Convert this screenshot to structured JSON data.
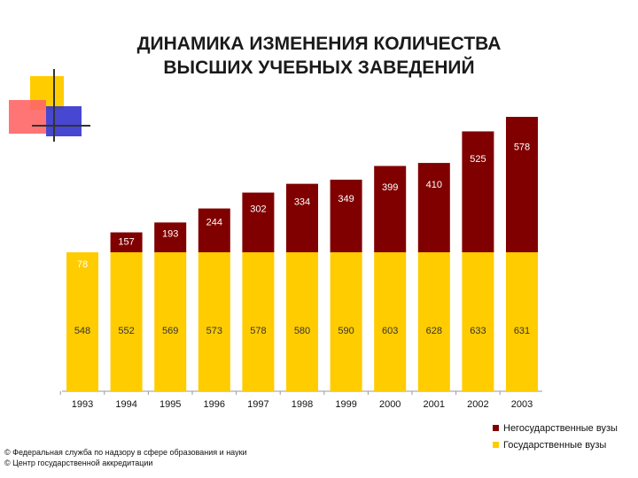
{
  "title_line1": "ДИНАМИКА ИЗМЕНЕНИЯ КОЛИЧЕСТВА",
  "title_line2": "ВЫСШИХ УЧЕБНЫХ ЗАВЕДЕНИЙ",
  "colors": {
    "state": "#ffcc00",
    "nonstate": "#800000",
    "deco_yellow": "#ffcc00",
    "deco_red": "#ff4d4d",
    "deco_blue": "#3333cc",
    "deco_line": "#333333"
  },
  "chart_data": {
    "type": "bar",
    "stacked": true,
    "categories": [
      "1993",
      "1994",
      "1995",
      "1996",
      "1997",
      "1998",
      "1999",
      "2000",
      "2001",
      "2002",
      "2003"
    ],
    "series": [
      {
        "name": "Государственные вузы",
        "values": [
          548,
          552,
          569,
          573,
          578,
          580,
          590,
          603,
          628,
          633,
          631
        ]
      },
      {
        "name": "Негосударственные вузы",
        "values": [
          78,
          157,
          193,
          244,
          302,
          334,
          349,
          399,
          410,
          525,
          578
        ]
      }
    ],
    "legend_position": "bottom-right",
    "grid": false
  },
  "legend": [
    {
      "label": "Негосударственные вузы",
      "color": "#800000"
    },
    {
      "label": "Государственные вузы",
      "color": "#ffcc00"
    }
  ],
  "source_line1": "© Федеральная служба по надзору в сфере образования и науки",
  "source_line2": "© Центр государственной аккредитации"
}
